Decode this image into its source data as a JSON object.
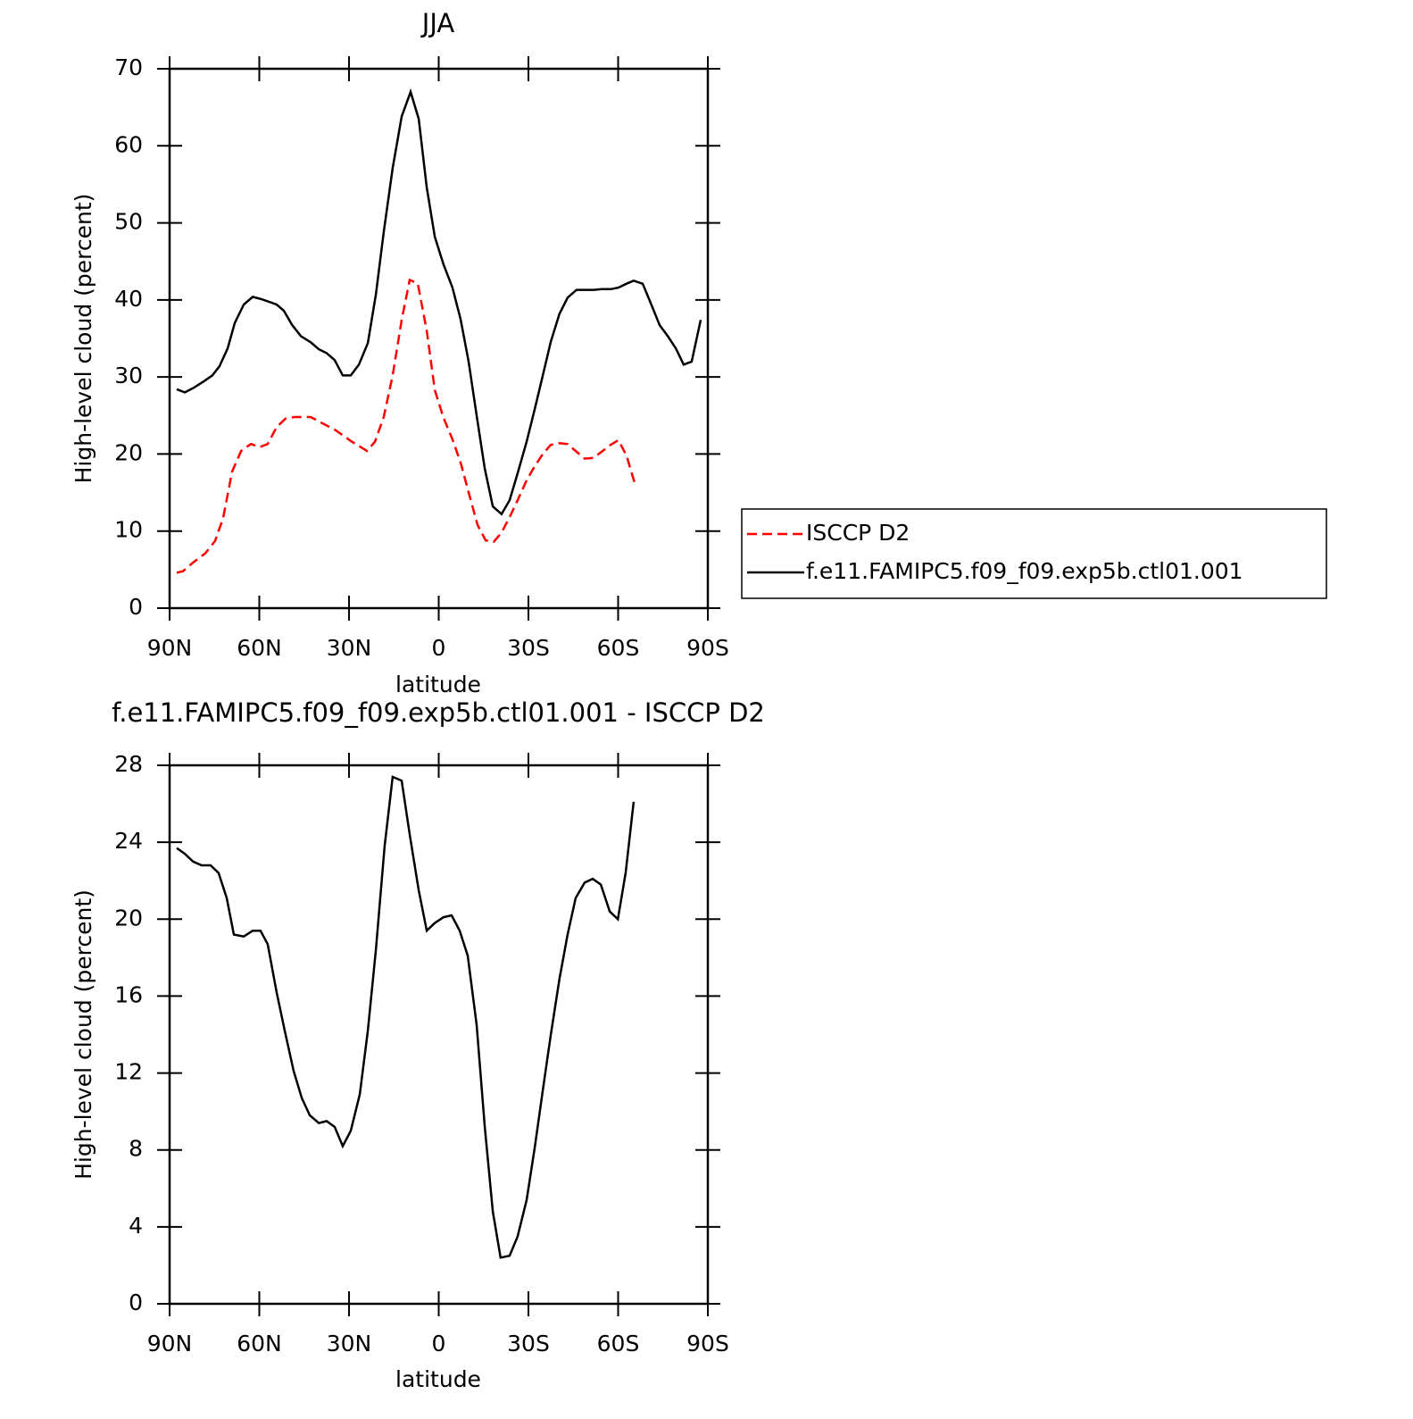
{
  "chart_data": [
    {
      "type": "line",
      "title": "JJA",
      "xlabel": "latitude",
      "ylabel": "High-level cloud (percent)",
      "xlim": [
        90,
        -90
      ],
      "xticks": [
        {
          "value": 90,
          "label": "90N"
        },
        {
          "value": 60,
          "label": "60N"
        },
        {
          "value": 30,
          "label": "30N"
        },
        0,
        {
          "value": -30,
          "label": "30S"
        },
        {
          "value": -60,
          "label": "60S"
        },
        {
          "value": -90,
          "label": "90S"
        }
      ],
      "ylim": [
        0,
        70
      ],
      "yticks": [
        0,
        10,
        20,
        30,
        40,
        50,
        60,
        70
      ],
      "grid": false,
      "legend": "right",
      "series": [
        {
          "name": "ISCCP D2",
          "color": "#ff0000",
          "dash": "dashed",
          "x": [
            87.6,
            85.5,
            82.2,
            78.1,
            74.8,
            72.1,
            69.1,
            66.1,
            62.8,
            59.9,
            57.2,
            54.2,
            51.2,
            48.2,
            42.8,
            39.9,
            34.5,
            29.4,
            24.0,
            21.3,
            18.4,
            15.4,
            12.4,
            9.7,
            7.0,
            4.0,
            1.3,
            -1.6,
            -4.6,
            -7.3,
            -10.3,
            -13.0,
            -15.7,
            -18.4,
            -21.0,
            -23.7,
            -26.4,
            -29.4,
            -32.1,
            -34.8,
            -37.5,
            -40.4,
            -43.1,
            -45.8,
            -48.8,
            -51.8,
            -54.5,
            -57.5,
            -60.1,
            -62.8,
            -65.5
          ],
          "values": [
            4.6,
            4.8,
            5.9,
            7.1,
            8.7,
            11.7,
            17.7,
            20.4,
            21.3,
            20.9,
            21.3,
            23.5,
            24.6,
            24.8,
            24.8,
            24.2,
            23.1,
            21.7,
            20.4,
            21.6,
            24.8,
            30.2,
            37.4,
            42.6,
            42.1,
            36.0,
            28.3,
            24.7,
            21.9,
            18.9,
            14.6,
            10.8,
            8.8,
            8.6,
            9.8,
            11.8,
            14.0,
            16.6,
            18.4,
            20.0,
            21.2,
            21.4,
            21.3,
            20.4,
            19.4,
            19.5,
            20.3,
            21.2,
            21.8,
            19.8,
            16.3
          ]
        },
        {
          "name": "f.e11.FAMIPC5.f09_f09.exp5b.ctl01.001",
          "color": "#000000",
          "dash": "solid",
          "x": [
            87.6,
            84.9,
            81.9,
            78.7,
            75.7,
            73.3,
            70.6,
            68.2,
            65.2,
            62.2,
            59.3,
            54.2,
            51.8,
            49.1,
            46.1,
            42.8,
            40.1,
            37.5,
            34.8,
            32.1,
            29.4,
            26.7,
            23.7,
            21.0,
            18.4,
            15.4,
            12.4,
            9.4,
            6.7,
            4.0,
            1.3,
            -1.6,
            -4.6,
            -7.3,
            -10.0,
            -12.7,
            -15.4,
            -18.1,
            -21.0,
            -23.7,
            -26.4,
            -29.4,
            -32.1,
            -34.8,
            -37.5,
            -40.4,
            -43.1,
            -46.1,
            -49.1,
            -51.8,
            -54.5,
            -57.5,
            -60.1,
            -62.8,
            -65.2,
            -68.2,
            -71.2,
            -73.9,
            -76.6,
            -79.3,
            -81.9,
            -84.6,
            -87.6
          ],
          "values": [
            28.4,
            28.0,
            28.6,
            29.4,
            30.2,
            31.4,
            33.7,
            37.0,
            39.4,
            40.4,
            40.1,
            39.4,
            38.6,
            36.8,
            35.3,
            34.5,
            33.6,
            33.1,
            32.2,
            30.2,
            30.2,
            31.6,
            34.4,
            40.7,
            48.8,
            57.1,
            63.8,
            67.0,
            63.5,
            54.6,
            48.2,
            44.6,
            41.6,
            37.5,
            32.0,
            25.0,
            18.1,
            13.2,
            12.2,
            14.0,
            17.5,
            21.6,
            25.8,
            30.2,
            34.6,
            38.2,
            40.3,
            41.3,
            41.3,
            41.3,
            41.4,
            41.4,
            41.6,
            42.1,
            42.5,
            42.1,
            39.3,
            36.7,
            35.3,
            33.7,
            31.6,
            32.0,
            37.4
          ]
        }
      ]
    },
    {
      "type": "line",
      "title": "f.e11.FAMIPC5.f09_f09.exp5b.ctl01.001 - ISCCP D2",
      "xlabel": "latitude",
      "ylabel": "High-level cloud (percent)",
      "xlim": [
        90,
        -90
      ],
      "xticks": [
        {
          "value": 90,
          "label": "90N"
        },
        {
          "value": 60,
          "label": "60N"
        },
        {
          "value": 30,
          "label": "30N"
        },
        0,
        {
          "value": -30,
          "label": "30S"
        },
        {
          "value": -60,
          "label": "60S"
        },
        {
          "value": -90,
          "label": "90S"
        }
      ],
      "ylim": [
        0,
        28
      ],
      "yticks": [
        0,
        4,
        8,
        12,
        16,
        20,
        24,
        28
      ],
      "grid": false,
      "series": [
        {
          "color": "#000000",
          "dash": "solid",
          "x": [
            87.6,
            84.9,
            82.2,
            79.3,
            76.3,
            73.6,
            70.9,
            68.5,
            65.2,
            62.2,
            59.6,
            57.2,
            54.2,
            51.5,
            48.5,
            45.8,
            43.1,
            40.1,
            37.5,
            34.8,
            32.1,
            29.4,
            26.4,
            23.7,
            21.0,
            18.1,
            15.4,
            12.4,
            9.7,
            6.7,
            4.0,
            1.3,
            -1.6,
            -4.3,
            -7.0,
            -9.7,
            -12.7,
            -15.4,
            -18.1,
            -20.7,
            -23.7,
            -26.4,
            -29.4,
            -32.1,
            -34.8,
            -37.5,
            -40.4,
            -43.1,
            -45.8,
            -48.8,
            -51.5,
            -54.2,
            -57.2,
            -59.9,
            -62.5,
            -65.2
          ],
          "values": [
            23.7,
            23.4,
            23.0,
            22.8,
            22.8,
            22.4,
            21.1,
            19.2,
            19.1,
            19.4,
            19.4,
            18.7,
            16.2,
            14.2,
            12.1,
            10.7,
            9.8,
            9.4,
            9.5,
            9.2,
            8.2,
            9.0,
            10.9,
            14.2,
            18.4,
            23.8,
            27.4,
            27.2,
            24.4,
            21.5,
            19.4,
            19.8,
            20.1,
            20.2,
            19.4,
            18.1,
            14.5,
            9.2,
            4.8,
            2.4,
            2.5,
            3.5,
            5.4,
            8.1,
            11.1,
            14.0,
            16.9,
            19.2,
            21.1,
            21.9,
            22.1,
            21.8,
            20.4,
            20.0,
            22.4,
            26.1
          ]
        }
      ]
    }
  ]
}
